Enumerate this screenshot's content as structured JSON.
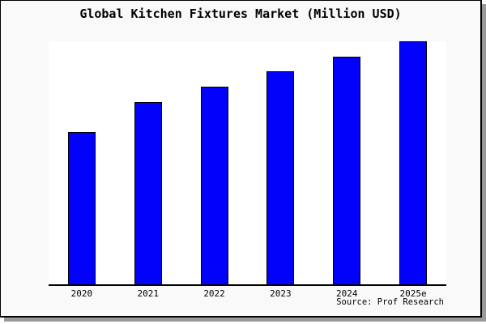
{
  "source": "Source: Prof Research",
  "colors": {
    "bar_fill": "#0202fa",
    "bar_border": "#000000",
    "card_background": "#f9f9f9",
    "plot_background": "#ffffff",
    "axis": "#000000",
    "card_border": "#000000",
    "drop_shadow": "#999999",
    "text": "#000000"
  },
  "chart_data": {
    "type": "bar",
    "title": "Global Kitchen Fixtures Market (Million USD)",
    "categories": [
      "2020",
      "2021",
      "2022",
      "2023",
      "2024",
      "2025e"
    ],
    "values": [
      188,
      225,
      244,
      263,
      281,
      300
    ],
    "xlabel": "",
    "ylabel": "",
    "ylim": [
      0,
      300
    ],
    "grid": false,
    "legend": false,
    "y_axis_visible": false,
    "note": "No y-axis tick labels are shown in the image; values are relative units estimated from bar pixel heights (tallest bar 2025e = 300 reaches the plot top)."
  }
}
